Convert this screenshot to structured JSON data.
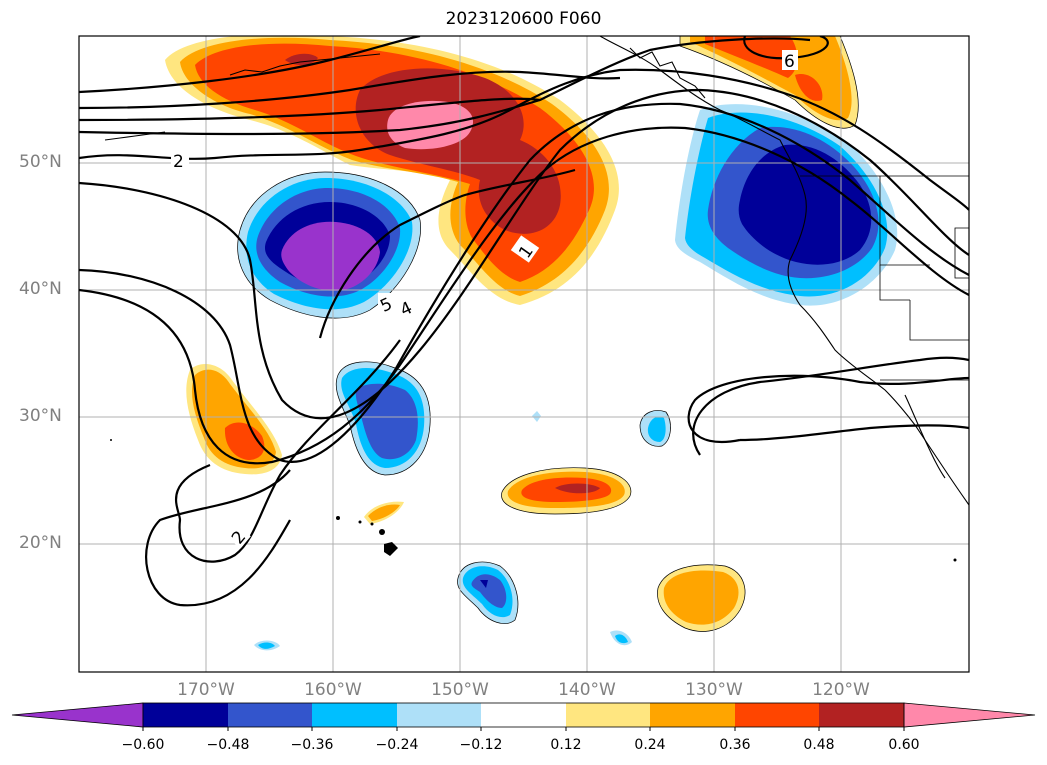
{
  "title": "2023120600 F060",
  "lat_labels": [
    "50°N",
    "40°N",
    "30°N",
    "20°N"
  ],
  "lon_labels": [
    "170°W",
    "160°W",
    "150°W",
    "140°W",
    "130°W",
    "120°W"
  ],
  "contour_labels": [
    "2",
    "1",
    "5",
    "4",
    "6",
    "2"
  ],
  "colorbar": {
    "ticks": [
      "−0.60",
      "−0.48",
      "−0.36",
      "−0.24",
      "−0.12",
      "0.12",
      "0.24",
      "0.36",
      "0.48",
      "0.60"
    ],
    "colors": [
      "#9933cc",
      "#000099",
      "#3355cc",
      "#00bfff",
      "#aee0f8",
      "#ffffff",
      "#ffe680",
      "#ffa500",
      "#ff4500",
      "#b22222",
      "#ff88aa"
    ]
  },
  "anomaly_colors": {
    "purple": "#9933cc",
    "navy": "#000099",
    "blue": "#3355cc",
    "cyan": "#00bfff",
    "lightblue": "#aee0f8",
    "yellow": "#ffe680",
    "orange": "#ffa500",
    "redorange": "#ff4500",
    "darkred": "#b22222",
    "pink": "#ff88aa"
  }
}
